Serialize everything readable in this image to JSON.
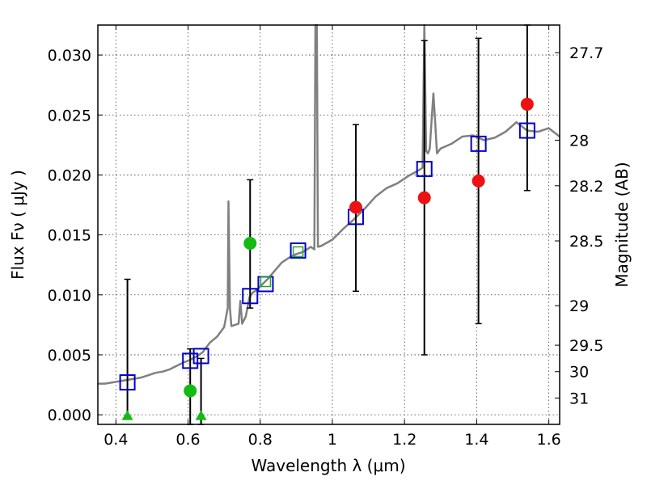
{
  "chart_data": {
    "type": "scatter",
    "title": "",
    "xlabel": "Wavelength  λ (μm)",
    "ylabel": "Flux  Fν  ( μJy )",
    "y2label": "Magnitude (AB)",
    "xlim": [
      0.35,
      1.63
    ],
    "ylim": [
      -0.0008,
      0.0325
    ],
    "xticks": [
      0.4,
      0.6,
      0.8,
      1.0,
      1.2,
      1.4,
      1.6
    ],
    "xtick_labels": [
      "0.4",
      "0.6",
      "0.8",
      "1",
      "1.2",
      "1.4",
      "1.6"
    ],
    "yticks": [
      0.0,
      0.005,
      0.01,
      0.015,
      0.02,
      0.025,
      0.03
    ],
    "ytick_labels": [
      "0.000",
      "0.005",
      "0.010",
      "0.015",
      "0.020",
      "0.025",
      "0.030"
    ],
    "y2ticks": [
      {
        "label": "27.7",
        "flux": 0.0302
      },
      {
        "label": "28",
        "flux": 0.0229
      },
      {
        "label": "28.2",
        "flux": 0.0191
      },
      {
        "label": "28.5",
        "flux": 0.0145
      },
      {
        "label": "29",
        "flux": 0.0091
      },
      {
        "label": "29.5",
        "flux": 0.0058
      },
      {
        "label": "30",
        "flux": 0.0036
      },
      {
        "label": "31",
        "flux": 0.0014
      }
    ],
    "grid": true,
    "colors": {
      "sed_line": "#808080",
      "model_box": "#0000cc",
      "model_box_green": "#22aa22",
      "red_point": "#ee1111",
      "green_point": "#11bb11",
      "error_bar": "#000000"
    },
    "sed_line": {
      "x": [
        0.35,
        0.37,
        0.39,
        0.41,
        0.43,
        0.45,
        0.47,
        0.49,
        0.51,
        0.53,
        0.55,
        0.57,
        0.59,
        0.6,
        0.62,
        0.64,
        0.66,
        0.68,
        0.7,
        0.71,
        0.712,
        0.716,
        0.72,
        0.74,
        0.745,
        0.75,
        0.76,
        0.77,
        0.78,
        0.79,
        0.8,
        0.82,
        0.84,
        0.86,
        0.88,
        0.9,
        0.92,
        0.94,
        0.95,
        0.953,
        0.957,
        0.96,
        0.97,
        1.0,
        1.03,
        1.06,
        1.09,
        1.12,
        1.15,
        1.18,
        1.21,
        1.24,
        1.25,
        1.255,
        1.26,
        1.265,
        1.27,
        1.275,
        1.28,
        1.285,
        1.29,
        1.3,
        1.33,
        1.36,
        1.39,
        1.42,
        1.45,
        1.48,
        1.51,
        1.54,
        1.57,
        1.6,
        1.63
      ],
      "y": [
        0.0026,
        0.0026,
        0.0027,
        0.0028,
        0.0029,
        0.003,
        0.0031,
        0.0033,
        0.0035,
        0.0036,
        0.0038,
        0.0041,
        0.0044,
        0.0045,
        0.0048,
        0.0052,
        0.006,
        0.0065,
        0.0073,
        0.0089,
        0.0178,
        0.0089,
        0.0074,
        0.0076,
        0.0095,
        0.0076,
        0.0082,
        0.0098,
        0.0102,
        0.0104,
        0.0107,
        0.0113,
        0.012,
        0.0127,
        0.0131,
        0.0134,
        0.0136,
        0.014,
        0.0138,
        0.0325,
        0.0325,
        0.014,
        0.0141,
        0.0146,
        0.0155,
        0.0163,
        0.0172,
        0.0182,
        0.0189,
        0.0193,
        0.0199,
        0.0204,
        0.0206,
        0.0325,
        0.022,
        0.0218,
        0.0222,
        0.0245,
        0.0268,
        0.0244,
        0.0218,
        0.0222,
        0.0226,
        0.0232,
        0.0233,
        0.0229,
        0.0231,
        0.0236,
        0.0244,
        0.0237,
        0.0236,
        0.0239,
        0.0232
      ]
    },
    "series": [
      {
        "marker": "open-square-blue",
        "x": [
          0.432,
          0.606,
          0.636,
          0.772,
          0.815,
          0.905,
          1.065,
          1.255,
          1.405,
          1.54
        ],
        "y": [
          0.0027,
          0.0045,
          0.0049,
          0.0099,
          0.0109,
          0.0137,
          0.0165,
          0.0205,
          0.0226,
          0.0237
        ]
      },
      {
        "marker": "open-square-green",
        "x": [
          0.815,
          0.905
        ],
        "y": [
          0.0111,
          0.0136
        ]
      },
      {
        "marker": "filled-circle-red",
        "x": [
          1.065,
          1.255,
          1.405,
          1.54
        ],
        "y": [
          0.0173,
          0.0181,
          0.0195,
          0.0259
        ],
        "err_low": [
          0.0103,
          0.005,
          0.0076,
          0.0187
        ],
        "err_high": [
          0.0242,
          0.0312,
          0.0314,
          0.0325
        ]
      },
      {
        "marker": "filled-circle-green",
        "x": [
          0.606,
          0.772
        ],
        "y": [
          0.002,
          0.0143
        ],
        "err_low": [
          -0.0009,
          0.0089
        ],
        "err_high": [
          0.0055,
          0.0196
        ]
      },
      {
        "marker": "filled-triangle-green",
        "x": [
          0.432,
          0.636
        ],
        "y": [
          -0.0001,
          -0.0001
        ],
        "err_low": [
          -0.0001,
          -0.0009
        ],
        "err_high": [
          0.0113,
          0.0047
        ]
      }
    ]
  }
}
